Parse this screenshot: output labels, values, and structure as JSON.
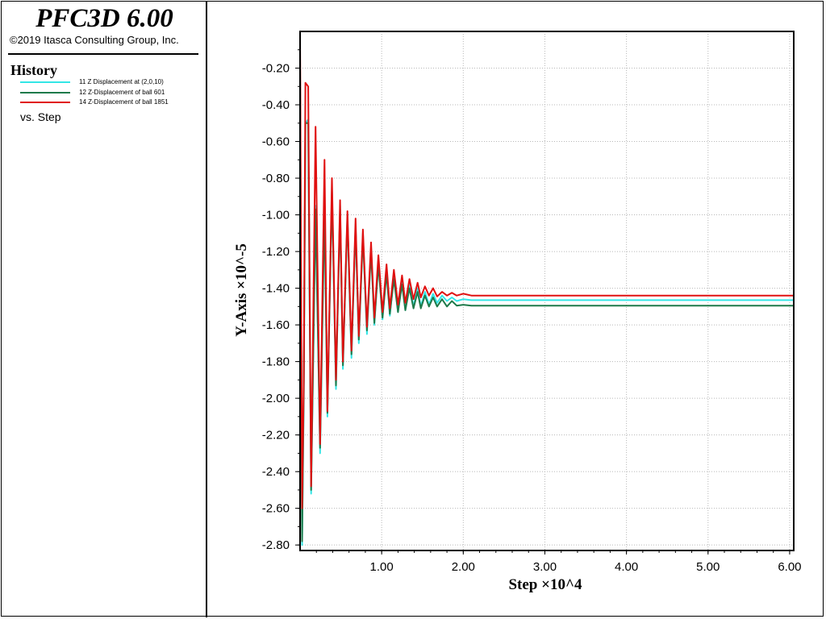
{
  "app": {
    "title": "PFC3D 6.00",
    "copyright": "©2019 Itasca Consulting Group, Inc."
  },
  "legend": {
    "heading": "History",
    "items": [
      {
        "label": "11 Z Displacement at (2,0,10)",
        "color": "#33e6e6"
      },
      {
        "label": "12 Z-Displacement of ball 601",
        "color": "#1f7a4a"
      },
      {
        "label": "14 Z-Displacement of ball 1851",
        "color": "#e01010"
      }
    ],
    "vs_label": "vs. Step"
  },
  "chart_data": {
    "type": "line",
    "xlabel": "Step ×10^4",
    "ylabel": "Y-Axis ×10^-5",
    "xlim": [
      0,
      6.05
    ],
    "ylim": [
      -2.83,
      0.0
    ],
    "x_ticks": [
      "1.00",
      "2.00",
      "3.00",
      "4.00",
      "5.00",
      "6.00"
    ],
    "x_tick_values": [
      1,
      2,
      3,
      4,
      5,
      6
    ],
    "y_ticks": [
      "-0.20",
      "-0.40",
      "-0.60",
      "-0.80",
      "-1.00",
      "-1.20",
      "-1.40",
      "-1.60",
      "-1.80",
      "-2.00",
      "-2.20",
      "-2.40",
      "-2.60",
      "-2.80"
    ],
    "y_tick_values": [
      -0.2,
      -0.4,
      -0.6,
      -0.8,
      -1.0,
      -1.2,
      -1.4,
      -1.6,
      -1.8,
      -2.0,
      -2.2,
      -2.4,
      -2.6,
      -2.8
    ],
    "grid": true,
    "series": [
      {
        "name": "11 Z Displacement at (2,0,10)",
        "color": "#33e6e6",
        "x": [
          0.0,
          0.025,
          0.045,
          0.065,
          0.1,
          0.135,
          0.19,
          0.245,
          0.3,
          0.335,
          0.39,
          0.44,
          0.49,
          0.525,
          0.58,
          0.63,
          0.68,
          0.72,
          0.77,
          0.82,
          0.87,
          0.91,
          0.96,
          1.01,
          1.06,
          1.1,
          1.15,
          1.2,
          1.25,
          1.29,
          1.34,
          1.39,
          1.44,
          1.48,
          1.53,
          1.58,
          1.63,
          1.68,
          1.74,
          1.8,
          1.86,
          1.92,
          2.0,
          2.1,
          2.3,
          3.0,
          4.0,
          5.0,
          6.05
        ],
        "y": [
          -0.15,
          -2.8,
          -2.0,
          -0.5,
          -0.48,
          -2.52,
          -0.95,
          -2.3,
          -0.95,
          -2.1,
          -0.85,
          -1.95,
          -0.95,
          -1.84,
          -1.0,
          -1.78,
          -1.05,
          -1.7,
          -1.1,
          -1.65,
          -1.18,
          -1.6,
          -1.25,
          -1.57,
          -1.3,
          -1.55,
          -1.33,
          -1.53,
          -1.36,
          -1.52,
          -1.38,
          -1.5,
          -1.4,
          -1.5,
          -1.42,
          -1.49,
          -1.43,
          -1.48,
          -1.44,
          -1.47,
          -1.45,
          -1.47,
          -1.46,
          -1.465,
          -1.465,
          -1.465,
          -1.465,
          -1.465,
          -1.465
        ]
      },
      {
        "name": "12 Z-Displacement of ball 601",
        "color": "#1f7a4a",
        "x": [
          0.0,
          0.025,
          0.045,
          0.065,
          0.1,
          0.135,
          0.19,
          0.245,
          0.3,
          0.335,
          0.39,
          0.44,
          0.49,
          0.525,
          0.58,
          0.63,
          0.68,
          0.72,
          0.77,
          0.82,
          0.87,
          0.91,
          0.96,
          1.01,
          1.06,
          1.1,
          1.15,
          1.2,
          1.25,
          1.29,
          1.34,
          1.39,
          1.44,
          1.48,
          1.53,
          1.58,
          1.63,
          1.68,
          1.74,
          1.8,
          1.86,
          1.92,
          2.0,
          2.1,
          2.3,
          3.0,
          4.0,
          5.0,
          6.05
        ],
        "y": [
          -0.15,
          -2.78,
          -1.95,
          -0.5,
          -0.5,
          -2.5,
          -0.97,
          -2.27,
          -0.97,
          -2.08,
          -0.87,
          -1.93,
          -0.97,
          -1.82,
          -1.02,
          -1.76,
          -1.07,
          -1.68,
          -1.12,
          -1.63,
          -1.2,
          -1.59,
          -1.27,
          -1.56,
          -1.32,
          -1.54,
          -1.35,
          -1.53,
          -1.38,
          -1.52,
          -1.4,
          -1.51,
          -1.42,
          -1.51,
          -1.44,
          -1.5,
          -1.45,
          -1.5,
          -1.46,
          -1.5,
          -1.47,
          -1.495,
          -1.49,
          -1.495,
          -1.495,
          -1.495,
          -1.495,
          -1.495,
          -1.495
        ]
      },
      {
        "name": "14 Z-Displacement of ball 1851",
        "color": "#e01010",
        "x": [
          0.0,
          0.025,
          0.045,
          0.065,
          0.1,
          0.135,
          0.19,
          0.245,
          0.3,
          0.335,
          0.39,
          0.44,
          0.49,
          0.525,
          0.58,
          0.63,
          0.68,
          0.72,
          0.77,
          0.82,
          0.87,
          0.91,
          0.96,
          1.01,
          1.06,
          1.1,
          1.15,
          1.2,
          1.25,
          1.29,
          1.34,
          1.39,
          1.44,
          1.48,
          1.53,
          1.58,
          1.63,
          1.68,
          1.74,
          1.8,
          1.86,
          1.92,
          2.0,
          2.1,
          2.3,
          3.0,
          4.0,
          5.0,
          6.05
        ],
        "y": [
          0.0,
          -2.6,
          -1.9,
          -0.28,
          -0.3,
          -2.48,
          -0.52,
          -2.25,
          -0.7,
          -2.07,
          -0.8,
          -1.9,
          -0.92,
          -1.8,
          -0.98,
          -1.74,
          -1.02,
          -1.66,
          -1.08,
          -1.61,
          -1.15,
          -1.56,
          -1.22,
          -1.53,
          -1.27,
          -1.51,
          -1.3,
          -1.49,
          -1.33,
          -1.48,
          -1.35,
          -1.46,
          -1.37,
          -1.45,
          -1.39,
          -1.44,
          -1.4,
          -1.445,
          -1.42,
          -1.44,
          -1.425,
          -1.44,
          -1.43,
          -1.44,
          -1.44,
          -1.44,
          -1.44,
          -1.44,
          -1.44
        ]
      }
    ]
  }
}
